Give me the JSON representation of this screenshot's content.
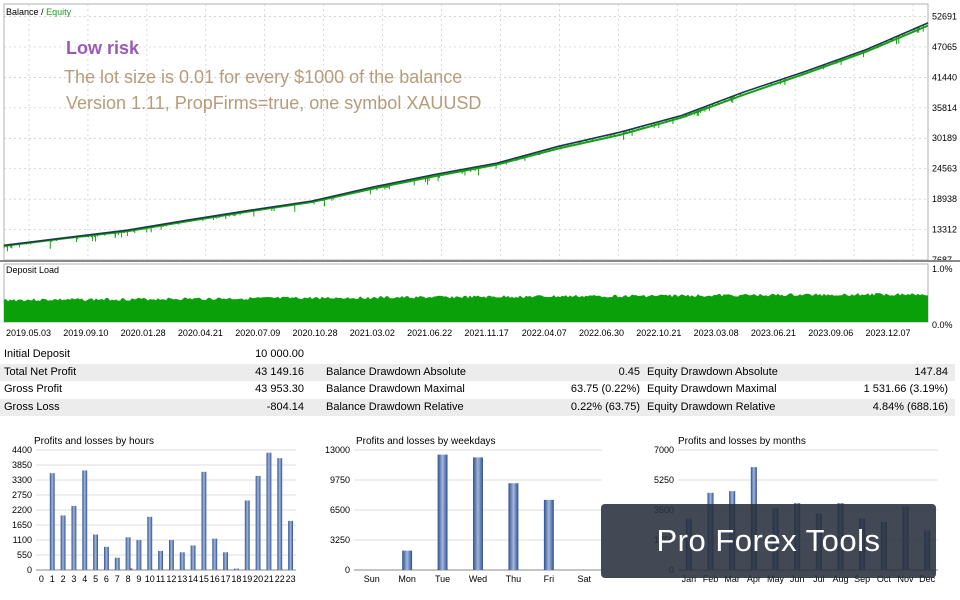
{
  "main_chart": {
    "tab_balance": "Balance",
    "tab_sep": "/",
    "tab_equity": "Equity",
    "y_ticks": [
      "52691",
      "47065",
      "41440",
      "35814",
      "30189",
      "24563",
      "18938",
      "13312",
      "7687"
    ],
    "annotation_title": "Low risk",
    "annotation_line1": "The lot size is 0.01 for every $1000 of the balance",
    "annotation_line2": "Version 1.11, PropFirms=true, one symbol XAUUSD",
    "colors": {
      "balance": "#1a3a4a",
      "equity": "#16a016",
      "grid": "#c8c8c8"
    }
  },
  "deposit_chart": {
    "label": "Deposit Load",
    "y_ticks": [
      "1.0%",
      "0.0%"
    ],
    "color": "#0aa00a"
  },
  "date_axis": [
    "2019.05.03",
    "2019.09.10",
    "2020.01.28",
    "2020.04.21",
    "2020.07.09",
    "2020.10.28",
    "2021.03.02",
    "2021.06.22",
    "2021.11.17",
    "2022.04.07",
    "2022.06.30",
    "2022.10.21",
    "2023.03.08",
    "2023.06.21",
    "2023.09.06",
    "2023.12.07"
  ],
  "stats": {
    "rows": [
      {
        "c1": "Initial Deposit",
        "v1": "10 000.00",
        "c2": "",
        "v2": "",
        "c3": "",
        "v3": ""
      },
      {
        "c1": "Total Net Profit",
        "v1": "43 149.16",
        "c2": "Balance Drawdown Absolute",
        "v2": "0.45",
        "c3": "Equity Drawdown Absolute",
        "v3": "147.84"
      },
      {
        "c1": "Gross Profit",
        "v1": "43 953.30",
        "c2": "Balance Drawdown Maximal",
        "v2": "63.75 (0.22%)",
        "c3": "Equity Drawdown Maximal",
        "v3": "1 531.66 (3.19%)"
      },
      {
        "c1": "Gross Loss",
        "v1": "-804.14",
        "c2": "Balance Drawdown Relative",
        "v2": "0.22% (63.75)",
        "c3": "Equity Drawdown Relative",
        "v3": "4.84% (688.16)"
      }
    ]
  },
  "chart_data": [
    {
      "type": "line",
      "title": "Balance / Equity",
      "x": [
        "2019.05.03",
        "2019.09.10",
        "2020.01.28",
        "2020.04.21",
        "2020.07.09",
        "2020.10.28",
        "2021.03.02",
        "2021.06.22",
        "2021.11.17",
        "2022.04.07",
        "2022.06.30",
        "2022.10.21",
        "2023.03.08",
        "2023.06.21",
        "2023.09.06",
        "2023.12.07"
      ],
      "series": [
        {
          "name": "Balance",
          "values": [
            10400,
            11800,
            13200,
            15100,
            16900,
            18600,
            21200,
            23500,
            25600,
            28700,
            31300,
            34400,
            38700,
            42500,
            46600,
            51500
          ]
        },
        {
          "name": "Equity",
          "values": [
            10300,
            11700,
            13000,
            14900,
            16700,
            18400,
            20900,
            23200,
            25300,
            28300,
            30800,
            34000,
            38200,
            42100,
            46200,
            51000
          ]
        }
      ],
      "ylim": [
        7687,
        55000
      ]
    },
    {
      "type": "bar",
      "title": "Profits and losses by hours",
      "categories": [
        "0",
        "1",
        "2",
        "3",
        "4",
        "5",
        "6",
        "7",
        "8",
        "9",
        "10",
        "11",
        "12",
        "13",
        "14",
        "15",
        "16",
        "17",
        "18",
        "19",
        "20",
        "21",
        "22",
        "23"
      ],
      "y_ticks": [
        "4400",
        "4070",
        "3740",
        "3410",
        "3080",
        "2750",
        "2420",
        "2090",
        "1760",
        "1430",
        "1100",
        "770",
        "440",
        "110",
        "0"
      ],
      "y_tick_labels": [
        "4400",
        "4070",
        "3740",
        "3410",
        "3080",
        "2750",
        "2420",
        "2090",
        "1760",
        "1430",
        "1100",
        "770",
        "440",
        "110"
      ],
      "tick_labels": [
        "4400",
        "3850",
        "3300",
        "2750",
        "2200",
        "1650",
        "1100",
        "550",
        "0"
      ],
      "series": [
        {
          "name": "Profit",
          "values": [
            0,
            3550,
            2000,
            2350,
            3650,
            1300,
            850,
            450,
            1200,
            1100,
            1950,
            700,
            1100,
            650,
            900,
            3600,
            1150,
            650,
            50,
            2550,
            3450,
            4300,
            4100,
            1800
          ]
        },
        {
          "name": "Loss",
          "values": [
            0,
            0,
            0,
            0,
            0,
            0,
            0,
            0,
            60,
            0,
            0,
            0,
            0,
            0,
            0,
            0,
            0,
            0,
            0,
            0,
            0,
            0,
            0,
            0
          ]
        }
      ],
      "ylim": [
        0,
        4400
      ]
    },
    {
      "type": "bar",
      "title": "Profits and losses by weekdays",
      "categories": [
        "Sun",
        "Mon",
        "Tue",
        "Wed",
        "Thu",
        "Fri",
        "Sat"
      ],
      "tick_labels": [
        "13000",
        "9750",
        "6500",
        "3250",
        "0"
      ],
      "series": [
        {
          "name": "Profit",
          "values": [
            0,
            2100,
            12500,
            12200,
            9400,
            7600,
            0
          ]
        },
        {
          "name": "Loss",
          "values": [
            0,
            0,
            0,
            0,
            0,
            0,
            0
          ]
        }
      ],
      "ylim": [
        0,
        13000
      ]
    },
    {
      "type": "bar",
      "title": "Profits and losses by months",
      "categories": [
        "Jan",
        "Feb",
        "Mar",
        "Apr",
        "May",
        "Jun",
        "Jul",
        "Aug",
        "Sep",
        "Oct",
        "Nov",
        "Dec"
      ],
      "tick_labels": [
        "7000",
        "5250",
        "3500",
        "1750",
        "0"
      ],
      "series": [
        {
          "name": "Profit",
          "values": [
            3000,
            4500,
            4600,
            6000,
            3600,
            3900,
            3300,
            3900,
            3000,
            2800,
            3700,
            2300
          ]
        },
        {
          "name": "Loss",
          "values": [
            0,
            0,
            0,
            0,
            0,
            0,
            0,
            0,
            0,
            0,
            0,
            0
          ]
        }
      ],
      "ylim": [
        0,
        7000
      ]
    }
  ],
  "brand": {
    "text": "Pro Forex Tools"
  }
}
